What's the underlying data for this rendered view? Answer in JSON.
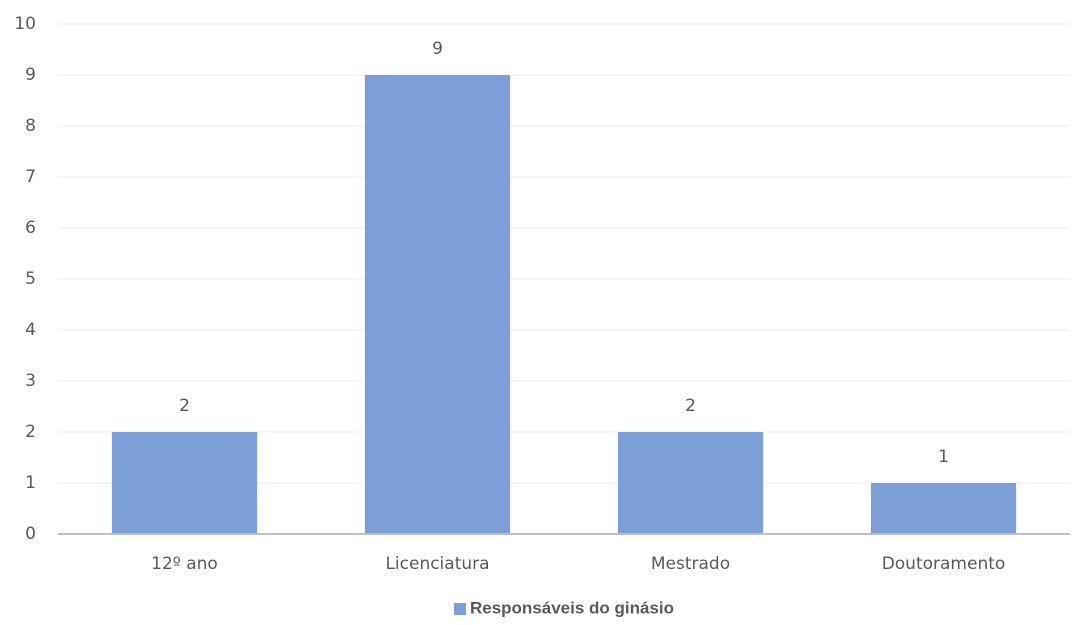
{
  "chart_data": {
    "type": "bar",
    "categories": [
      "12º ano",
      "Licenciatura",
      "Mestrado",
      "Doutoramento"
    ],
    "series": [
      {
        "name": "Responsáveis do ginásio",
        "color": "#7b9fd6",
        "values": [
          2,
          9,
          2,
          1
        ]
      }
    ],
    "ylim": [
      0,
      10
    ],
    "yticks": [
      0,
      1,
      2,
      3,
      4,
      5,
      6,
      7,
      8,
      9,
      10
    ],
    "grid": true,
    "legend": "bottom"
  }
}
